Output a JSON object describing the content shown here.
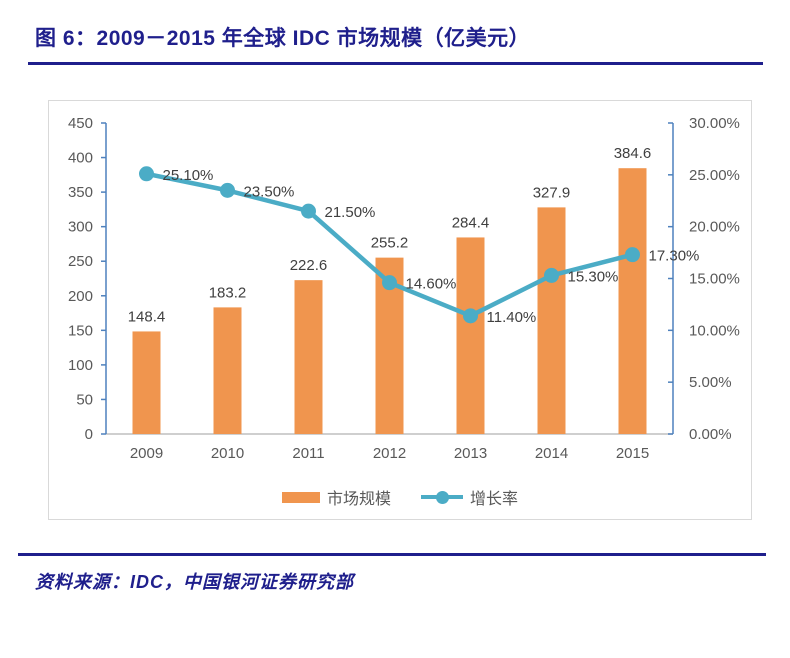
{
  "title": "图 6：2009－2015 年全球 IDC 市场规模（亿美元）",
  "source": "资料来源：IDC，中国银河证券研究部",
  "colors": {
    "navy": "#1F1F8C",
    "bar_orange": "#F0954E",
    "line_teal": "#4BACC6",
    "axis_blue": "#4E81BD",
    "axis_label_gray": "#595959",
    "data_label_gray": "#404040",
    "chart_border": "#D9D9D9",
    "baseline_gray": "#BFBFBF"
  },
  "chart_data": {
    "type": "combo",
    "title": "图 6：2009－2015 年全球 IDC 市场规模（亿美元）",
    "categories": [
      "2009",
      "2010",
      "2011",
      "2012",
      "2013",
      "2014",
      "2015"
    ],
    "series": [
      {
        "name": "市场规模",
        "type": "bar",
        "axis": "left",
        "values": [
          148.4,
          183.2,
          222.6,
          255.2,
          284.4,
          327.9,
          384.6
        ],
        "labels": [
          "148.4",
          "183.2",
          "222.6",
          "255.2",
          "284.4",
          "327.9",
          "384.6"
        ]
      },
      {
        "name": "增长率",
        "type": "line",
        "axis": "right",
        "values": [
          25.1,
          23.5,
          21.5,
          14.6,
          11.4,
          15.3,
          17.3
        ],
        "labels": [
          "25.10%",
          "23.50%",
          "21.50%",
          "14.60%",
          "11.40%",
          "15.30%",
          "17.30%"
        ]
      }
    ],
    "left_axis": {
      "min": 0,
      "max": 450,
      "ticks": [
        "0",
        "50",
        "100",
        "150",
        "200",
        "250",
        "300",
        "350",
        "400",
        "450"
      ]
    },
    "right_axis": {
      "min": 0,
      "max": 30,
      "ticks": [
        "0.00%",
        "5.00%",
        "10.00%",
        "15.00%",
        "20.00%",
        "25.00%",
        "30.00%"
      ]
    },
    "legend_position": "bottom",
    "grid": false
  }
}
